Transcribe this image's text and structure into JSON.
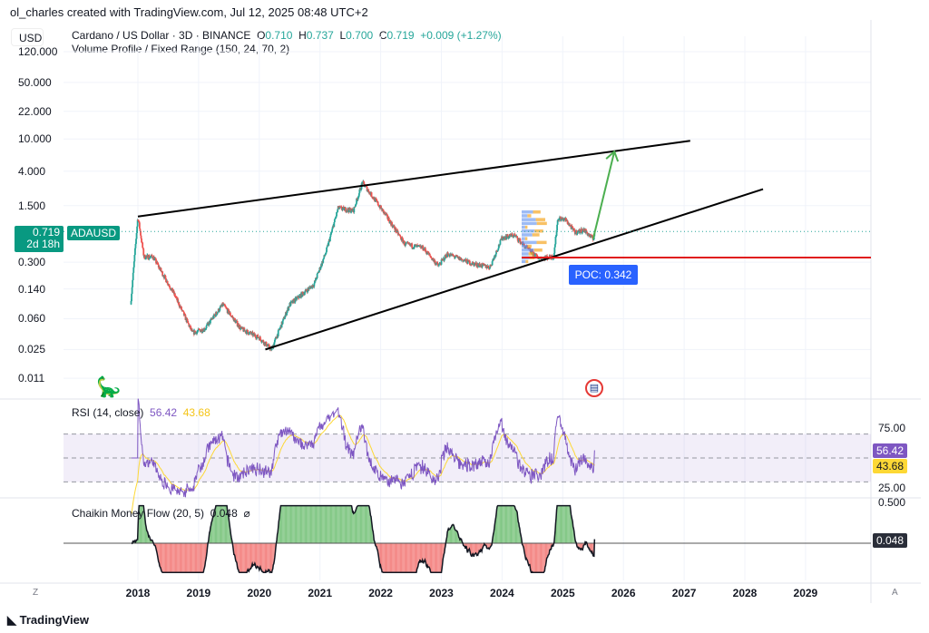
{
  "credit": "ol_charles created with TradingView.com, Jul 12, 2025 08:48 UTC+2",
  "currency_button": "USD",
  "legend": {
    "symbol": "Cardano / US Dollar · 3D · BINANCE",
    "o_label": "O",
    "open": "0.710",
    "h_label": "H",
    "high": "0.737",
    "l_label": "L",
    "low": "0.700",
    "c_label": "C",
    "close": "0.719",
    "change": "+0.009 (+1.27%)"
  },
  "volume_profile": "Volume Profile / Fixed Range (150, 24, 70, 2)",
  "price_badge": {
    "price": "0.719",
    "countdown": "2d 18h",
    "symbol": "ADAUSD"
  },
  "poc_label": "POC: 0.342",
  "rsi": {
    "title": "RSI (14, close)",
    "value": "56.42",
    "ma_value": "43.68",
    "upper": "75.00",
    "lower": "25.00"
  },
  "cmf": {
    "title": "Chaikin Money Flow (20, 5)",
    "value": "0.048",
    "upper": "0.500",
    "icon": "hidden-eye-icon"
  },
  "footer": {
    "logo": "TradingView",
    "z": "Z",
    "a": "A"
  },
  "colors": {
    "up": "#26a69a",
    "down": "#ef5350",
    "rsi": "#7e57c2",
    "rsi_ma": "#fdd835",
    "poc": "#e01b1b",
    "poc_badge": "#2962ff",
    "arrow": "#4caf50"
  },
  "chart_data": {
    "type": "line",
    "scale": "log",
    "y_ticks": [
      "120.000",
      "50.000",
      "22.000",
      "10.000",
      "4.000",
      "1.500",
      "0.719",
      "0.300",
      "0.140",
      "0.060",
      "0.025",
      "0.011"
    ],
    "x_ticks": [
      "2018",
      "2019",
      "2020",
      "2021",
      "2022",
      "2023",
      "2024",
      "2025",
      "2026",
      "2027",
      "2028",
      "2029"
    ],
    "price_path": [
      [
        2017.88,
        0.09
      ],
      [
        2018.0,
        1.1
      ],
      [
        2018.1,
        0.35
      ],
      [
        2018.25,
        0.35
      ],
      [
        2018.6,
        0.12
      ],
      [
        2018.9,
        0.04
      ],
      [
        2019.1,
        0.045
      ],
      [
        2019.4,
        0.09
      ],
      [
        2019.7,
        0.045
      ],
      [
        2020.0,
        0.035
      ],
      [
        2020.2,
        0.025
      ],
      [
        2020.5,
        0.09
      ],
      [
        2020.9,
        0.16
      ],
      [
        2021.1,
        0.4
      ],
      [
        2021.3,
        1.4
      ],
      [
        2021.55,
        1.3
      ],
      [
        2021.7,
        2.9
      ],
      [
        2021.9,
        1.8
      ],
      [
        2022.1,
        1.1
      ],
      [
        2022.4,
        0.5
      ],
      [
        2022.7,
        0.45
      ],
      [
        2022.95,
        0.27
      ],
      [
        2023.1,
        0.38
      ],
      [
        2023.5,
        0.29
      ],
      [
        2023.8,
        0.26
      ],
      [
        2024.0,
        0.6
      ],
      [
        2024.2,
        0.65
      ],
      [
        2024.4,
        0.45
      ],
      [
        2024.6,
        0.34
      ],
      [
        2024.85,
        0.35
      ],
      [
        2024.92,
        1.05
      ],
      [
        2025.05,
        1.0
      ],
      [
        2025.2,
        0.7
      ],
      [
        2025.35,
        0.75
      ],
      [
        2025.5,
        0.58
      ],
      [
        2025.53,
        0.719
      ]
    ],
    "trendlines": [
      {
        "from": [
          2018.0,
          1.1
        ],
        "to": [
          2027.1,
          9.5
        ]
      },
      {
        "from": [
          2020.1,
          0.025
        ],
        "to": [
          2028.3,
          2.4
        ]
      }
    ],
    "poc": 0.342,
    "arrow": {
      "from": [
        2025.5,
        0.58
      ],
      "to": [
        2025.85,
        7.0
      ]
    },
    "rsi_range": [
      25,
      75
    ],
    "rsi_bands": [
      30,
      50,
      70
    ],
    "cmf_range": [
      -0.5,
      0.5
    ]
  }
}
